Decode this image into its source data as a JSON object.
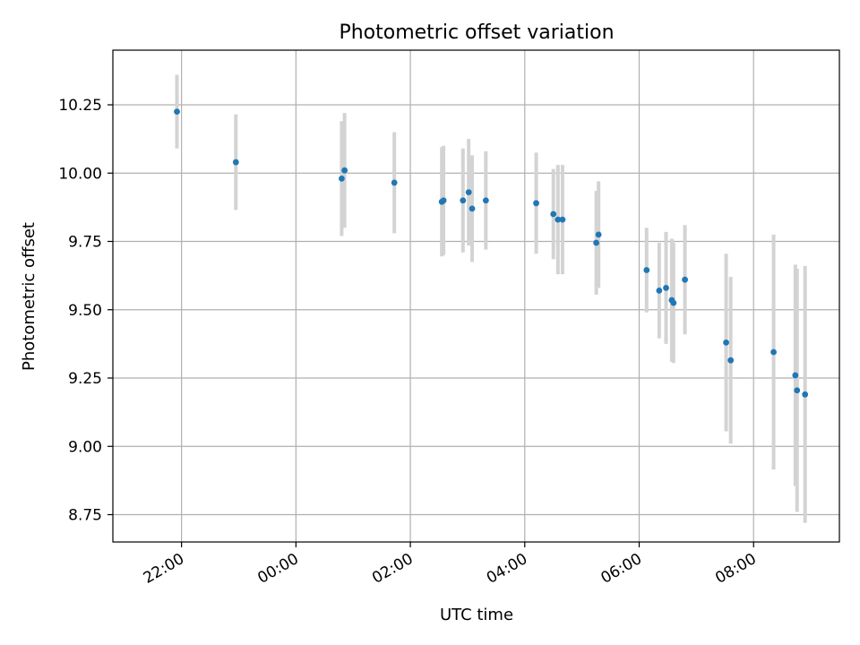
{
  "chart_data": {
    "type": "scatter",
    "title": "Photometric offset variation",
    "xlabel": "UTC time",
    "ylabel": "Photometric offset",
    "grid": true,
    "x_unit": "UTC time, hours since 00:00 (negative = previous evening)",
    "xlim": [
      -3.2,
      9.5
    ],
    "ylim": [
      8.65,
      10.45
    ],
    "x_ticks": [
      {
        "value": -2,
        "label": "22:00"
      },
      {
        "value": 0,
        "label": "00:00"
      },
      {
        "value": 2,
        "label": "02:00"
      },
      {
        "value": 4,
        "label": "04:00"
      },
      {
        "value": 6,
        "label": "06:00"
      },
      {
        "value": 8,
        "label": "08:00"
      }
    ],
    "y_ticks": [
      {
        "value": 8.75,
        "label": "8.75"
      },
      {
        "value": 9.0,
        "label": "9.00"
      },
      {
        "value": 9.25,
        "label": "9.25"
      },
      {
        "value": 9.5,
        "label": "9.50"
      },
      {
        "value": 9.75,
        "label": "9.75"
      },
      {
        "value": 10.0,
        "label": "10.00"
      },
      {
        "value": 10.25,
        "label": "10.25"
      }
    ],
    "colors": {
      "marker": "#1f77b4",
      "errorbar": "#d3d3d3",
      "grid": "#b0b0b0"
    },
    "points": [
      {
        "x": -2.08,
        "y": 10.225,
        "err": 0.135
      },
      {
        "x": -1.05,
        "y": 10.04,
        "err": 0.175
      },
      {
        "x": 0.8,
        "y": 9.98,
        "err": 0.21
      },
      {
        "x": 0.85,
        "y": 10.01,
        "err": 0.21
      },
      {
        "x": 1.72,
        "y": 9.965,
        "err": 0.185
      },
      {
        "x": 2.55,
        "y": 9.895,
        "err": 0.2
      },
      {
        "x": 2.58,
        "y": 9.9,
        "err": 0.2
      },
      {
        "x": 2.92,
        "y": 9.9,
        "err": 0.19
      },
      {
        "x": 3.02,
        "y": 9.93,
        "err": 0.195
      },
      {
        "x": 3.08,
        "y": 9.87,
        "err": 0.195
      },
      {
        "x": 3.32,
        "y": 9.9,
        "err": 0.18
      },
      {
        "x": 4.2,
        "y": 9.89,
        "err": 0.185
      },
      {
        "x": 4.5,
        "y": 9.85,
        "err": 0.165
      },
      {
        "x": 4.58,
        "y": 9.83,
        "err": 0.2
      },
      {
        "x": 4.66,
        "y": 9.83,
        "err": 0.2
      },
      {
        "x": 5.25,
        "y": 9.745,
        "err": 0.19
      },
      {
        "x": 5.29,
        "y": 9.775,
        "err": 0.195
      },
      {
        "x": 6.13,
        "y": 9.645,
        "err": 0.155
      },
      {
        "x": 6.35,
        "y": 9.57,
        "err": 0.175
      },
      {
        "x": 6.47,
        "y": 9.58,
        "err": 0.205
      },
      {
        "x": 6.57,
        "y": 9.535,
        "err": 0.225
      },
      {
        "x": 6.6,
        "y": 9.525,
        "err": 0.22
      },
      {
        "x": 6.8,
        "y": 9.61,
        "err": 0.2
      },
      {
        "x": 7.52,
        "y": 9.38,
        "err": 0.325
      },
      {
        "x": 7.6,
        "y": 9.315,
        "err": 0.305
      },
      {
        "x": 8.35,
        "y": 9.345,
        "err": 0.43
      },
      {
        "x": 8.73,
        "y": 9.26,
        "err": 0.405
      },
      {
        "x": 8.76,
        "y": 9.205,
        "err": 0.445
      },
      {
        "x": 8.9,
        "y": 9.19,
        "err": 0.47
      }
    ]
  }
}
